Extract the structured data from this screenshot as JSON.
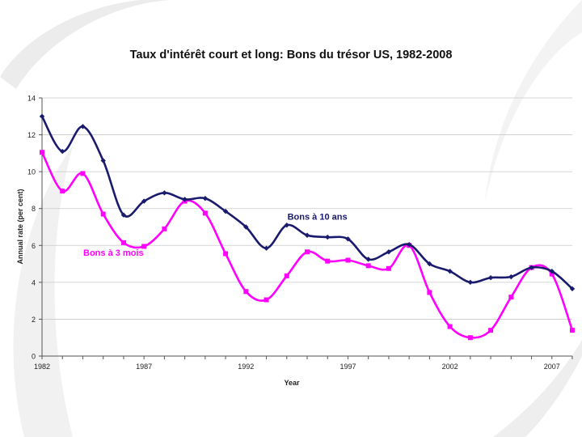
{
  "chart_data": {
    "type": "line",
    "title": "Taux d'intérêt court et long: Bons du trésor US, 1982-2008",
    "xlabel": "Year",
    "ylabel": "Annual rate (per cent)",
    "xlim": [
      1982,
      2008
    ],
    "ylim": [
      0,
      14
    ],
    "y_ticks": [
      0,
      2,
      4,
      6,
      8,
      10,
      12,
      14
    ],
    "x_tick_labels": [
      "1982",
      "1987",
      "1992",
      "1997",
      "2002",
      "2007"
    ],
    "x": [
      1982,
      1983,
      1984,
      1985,
      1986,
      1987,
      1988,
      1989,
      1990,
      1991,
      1992,
      1993,
      1994,
      1995,
      1996,
      1997,
      1998,
      1999,
      2000,
      2001,
      2002,
      2003,
      2004,
      2005,
      2006,
      2007,
      2008
    ],
    "grid": "horizontal",
    "series": [
      {
        "name": "Bons à 10 ans",
        "color": "#1a1a6e",
        "marker": "diamond",
        "values": [
          13.0,
          11.1,
          12.45,
          10.6,
          7.65,
          8.4,
          8.85,
          8.5,
          8.55,
          7.85,
          7.0,
          5.85,
          7.1,
          6.55,
          6.45,
          6.35,
          5.25,
          5.65,
          6.05,
          5.0,
          4.6,
          4.0,
          4.25,
          4.3,
          4.8,
          4.6,
          3.65
        ]
      },
      {
        "name": "Bons à 3 mois",
        "color": "#ff00ff",
        "marker": "square",
        "values": [
          11.05,
          8.95,
          9.9,
          7.7,
          6.15,
          5.95,
          6.9,
          8.4,
          7.75,
          5.55,
          3.5,
          3.05,
          4.35,
          5.65,
          5.15,
          5.2,
          4.9,
          4.75,
          6.0,
          3.45,
          1.6,
          1.0,
          1.4,
          3.2,
          4.8,
          4.45,
          1.4
        ]
      }
    ],
    "annotations": [
      {
        "text": "Bons à 10 ans",
        "series": "Bons à 10 ans",
        "x": 1995.5,
        "y": 7.4
      },
      {
        "text": "Bons à 3 mois",
        "series": "Bons à 3 mois",
        "x": 1985.5,
        "y": 5.45
      }
    ]
  }
}
